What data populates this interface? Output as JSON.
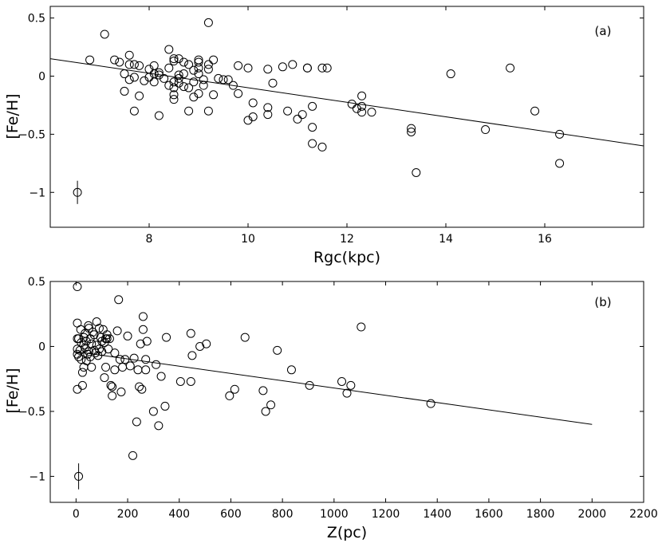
{
  "chart_data": [
    {
      "type": "scatter",
      "panel_label": "(a)",
      "xlabel": "Rgc(kpc)",
      "ylabel": "[Fe/H]",
      "xlim": [
        6,
        18
      ],
      "ylim": [
        -1.3,
        0.6
      ],
      "xticks": [
        8,
        10,
        12,
        14,
        16
      ],
      "yticks": [
        0.5,
        0,
        -0.5,
        -1
      ],
      "ytick_labels": [
        "0.5",
        "0",
        "−0.5",
        "−1"
      ],
      "legend": "none",
      "grid": false,
      "fit_line": {
        "x": [
          6,
          18
        ],
        "y": [
          0.15,
          -0.6
        ]
      },
      "error_bar": {
        "x": 6.55,
        "y": -1.0,
        "yerr": 0.1
      },
      "points": [
        [
          6.8,
          0.14
        ],
        [
          7.1,
          0.36
        ],
        [
          7.3,
          0.14
        ],
        [
          7.4,
          0.12
        ],
        [
          7.5,
          0.02
        ],
        [
          7.5,
          -0.13
        ],
        [
          7.6,
          0.18
        ],
        [
          7.6,
          0.1
        ],
        [
          7.6,
          -0.03
        ],
        [
          7.7,
          -0.01
        ],
        [
          7.7,
          -0.3
        ],
        [
          7.7,
          0.1
        ],
        [
          7.8,
          0.09
        ],
        [
          7.8,
          -0.17
        ],
        [
          7.9,
          -0.04
        ],
        [
          8.0,
          0.06
        ],
        [
          8.0,
          -0.01
        ],
        [
          8.1,
          0.02
        ],
        [
          8.1,
          -0.05
        ],
        [
          8.1,
          0.09
        ],
        [
          8.2,
          0.01
        ],
        [
          8.2,
          0.03
        ],
        [
          8.2,
          -0.34
        ],
        [
          8.3,
          -0.02
        ],
        [
          8.4,
          0.23
        ],
        [
          8.4,
          0.07
        ],
        [
          8.4,
          -0.08
        ],
        [
          8.5,
          0.15
        ],
        [
          8.5,
          0.13
        ],
        [
          8.5,
          -0.05
        ],
        [
          8.5,
          -0.1
        ],
        [
          8.5,
          -0.16
        ],
        [
          8.5,
          -0.2
        ],
        [
          8.6,
          0.15
        ],
        [
          8.6,
          -0.02
        ],
        [
          8.6,
          -0.06
        ],
        [
          8.6,
          0.01
        ],
        [
          8.7,
          -0.09
        ],
        [
          8.7,
          0.12
        ],
        [
          8.7,
          0.02
        ],
        [
          8.8,
          -0.3
        ],
        [
          8.8,
          0.1
        ],
        [
          8.8,
          -0.1
        ],
        [
          8.9,
          0.05
        ],
        [
          8.9,
          -0.05
        ],
        [
          8.9,
          -0.18
        ],
        [
          9.0,
          0.14
        ],
        [
          9.0,
          0.12
        ],
        [
          9.0,
          0.07
        ],
        [
          9.0,
          0.02
        ],
        [
          9.0,
          -0.15
        ],
        [
          9.1,
          -0.03
        ],
        [
          9.1,
          -0.08
        ],
        [
          9.2,
          0.46
        ],
        [
          9.2,
          0.1
        ],
        [
          9.2,
          0.06
        ],
        [
          9.2,
          -0.3
        ],
        [
          9.3,
          0.14
        ],
        [
          9.3,
          -0.16
        ],
        [
          9.4,
          -0.02
        ],
        [
          9.5,
          -0.03
        ],
        [
          9.6,
          -0.03
        ],
        [
          9.7,
          -0.08
        ],
        [
          9.8,
          0.09
        ],
        [
          9.8,
          -0.15
        ],
        [
          10.0,
          0.07
        ],
        [
          10.0,
          -0.38
        ],
        [
          10.1,
          -0.35
        ],
        [
          10.1,
          -0.23
        ],
        [
          10.4,
          0.06
        ],
        [
          10.4,
          -0.27
        ],
        [
          10.4,
          -0.33
        ],
        [
          10.5,
          -0.06
        ],
        [
          10.7,
          0.08
        ],
        [
          10.8,
          -0.3
        ],
        [
          10.9,
          0.1
        ],
        [
          11.0,
          -0.37
        ],
        [
          11.1,
          -0.33
        ],
        [
          11.2,
          0.07
        ],
        [
          11.2,
          0.07
        ],
        [
          11.3,
          -0.26
        ],
        [
          11.3,
          -0.44
        ],
        [
          11.3,
          -0.58
        ],
        [
          11.5,
          0.07
        ],
        [
          11.5,
          -0.61
        ],
        [
          11.6,
          0.07
        ],
        [
          12.1,
          -0.24
        ],
        [
          12.2,
          -0.28
        ],
        [
          12.3,
          -0.26
        ],
        [
          12.3,
          -0.17
        ],
        [
          12.3,
          -0.31
        ],
        [
          12.5,
          -0.31
        ],
        [
          13.3,
          -0.45
        ],
        [
          13.3,
          -0.48
        ],
        [
          13.4,
          -0.83
        ],
        [
          14.1,
          0.02
        ],
        [
          14.8,
          -0.46
        ],
        [
          15.3,
          0.07
        ],
        [
          15.8,
          -0.3
        ],
        [
          16.3,
          -0.5
        ],
        [
          16.3,
          -0.75
        ]
      ]
    },
    {
      "type": "scatter",
      "panel_label": "(b)",
      "xlabel": "Z(pc)",
      "ylabel": "[Fe/H]",
      "xlim": [
        -100,
        2200
      ],
      "ylim": [
        -1.2,
        0.5
      ],
      "xticks": [
        0,
        200,
        400,
        600,
        800,
        1000,
        1200,
        1400,
        1600,
        1800,
        2000,
        2200
      ],
      "yticks": [
        0.5,
        0,
        -0.5,
        -1
      ],
      "ytick_labels": [
        "0.5",
        "0",
        "−0.5",
        "−1"
      ],
      "legend": "none",
      "grid": false,
      "fit_line": {
        "x": [
          0,
          2000
        ],
        "y": [
          -0.04,
          -0.6
        ]
      },
      "error_bar": {
        "x": 10,
        "y": -1.0,
        "yerr": 0.1
      },
      "points": [
        [
          5,
          0.46
        ],
        [
          5,
          -0.33
        ],
        [
          5,
          0.18
        ],
        [
          5,
          0.06
        ],
        [
          5,
          -0.02
        ],
        [
          5,
          -0.06
        ],
        [
          10,
          -0.08
        ],
        [
          10,
          0.06
        ],
        [
          15,
          -0.03
        ],
        [
          18,
          0.13
        ],
        [
          20,
          0.03
        ],
        [
          20,
          -0.1
        ],
        [
          25,
          -0.3
        ],
        [
          25,
          -0.2
        ],
        [
          30,
          0.07
        ],
        [
          30,
          -0.16
        ],
        [
          30,
          0.01
        ],
        [
          35,
          0.1
        ],
        [
          35,
          -0.01
        ],
        [
          40,
          0.04
        ],
        [
          40,
          -0.11
        ],
        [
          45,
          -0.06
        ],
        [
          48,
          0.16
        ],
        [
          50,
          0.14
        ],
        [
          50,
          -0.04
        ],
        [
          55,
          0.06
        ],
        [
          55,
          -0.08
        ],
        [
          60,
          0.02
        ],
        [
          60,
          -0.16
        ],
        [
          65,
          0.11
        ],
        [
          70,
          -0.03
        ],
        [
          70,
          0.09
        ],
        [
          75,
          -0.05
        ],
        [
          80,
          0.19
        ],
        [
          80,
          0.01
        ],
        [
          85,
          -0.07
        ],
        [
          90,
          0.14
        ],
        [
          90,
          -0.02
        ],
        [
          95,
          0.07
        ],
        [
          100,
          -0.04
        ],
        [
          100,
          0.04
        ],
        [
          105,
          0.13
        ],
        [
          110,
          0.03
        ],
        [
          110,
          -0.24
        ],
        [
          115,
          0.06
        ],
        [
          115,
          -0.16
        ],
        [
          120,
          0.09
        ],
        [
          120,
          0.06
        ],
        [
          125,
          -0.02
        ],
        [
          130,
          0.06
        ],
        [
          135,
          -0.3
        ],
        [
          140,
          -0.31
        ],
        [
          140,
          -0.38
        ],
        [
          150,
          -0.18
        ],
        [
          150,
          -0.05
        ],
        [
          160,
          0.12
        ],
        [
          165,
          0.36
        ],
        [
          170,
          -0.1
        ],
        [
          175,
          -0.35
        ],
        [
          180,
          -0.16
        ],
        [
          190,
          -0.1
        ],
        [
          200,
          0.08
        ],
        [
          210,
          -0.15
        ],
        [
          220,
          -0.84
        ],
        [
          225,
          -0.09
        ],
        [
          235,
          -0.58
        ],
        [
          240,
          -0.18
        ],
        [
          245,
          -0.31
        ],
        [
          250,
          0.02
        ],
        [
          255,
          -0.33
        ],
        [
          260,
          0.23
        ],
        [
          260,
          0.13
        ],
        [
          270,
          -0.1
        ],
        [
          270,
          -0.18
        ],
        [
          275,
          0.04
        ],
        [
          300,
          -0.5
        ],
        [
          310,
          -0.14
        ],
        [
          320,
          -0.61
        ],
        [
          330,
          -0.23
        ],
        [
          345,
          -0.46
        ],
        [
          350,
          0.07
        ],
        [
          405,
          -0.27
        ],
        [
          445,
          -0.27
        ],
        [
          445,
          0.1
        ],
        [
          450,
          -0.07
        ],
        [
          480,
          0.0
        ],
        [
          505,
          0.02
        ],
        [
          595,
          -0.38
        ],
        [
          615,
          -0.33
        ],
        [
          655,
          0.07
        ],
        [
          725,
          -0.34
        ],
        [
          735,
          -0.5
        ],
        [
          755,
          -0.45
        ],
        [
          780,
          -0.03
        ],
        [
          835,
          -0.18
        ],
        [
          905,
          -0.3
        ],
        [
          1030,
          -0.27
        ],
        [
          1050,
          -0.36
        ],
        [
          1065,
          -0.3
        ],
        [
          1105,
          0.15
        ],
        [
          1375,
          -0.44
        ]
      ]
    }
  ]
}
